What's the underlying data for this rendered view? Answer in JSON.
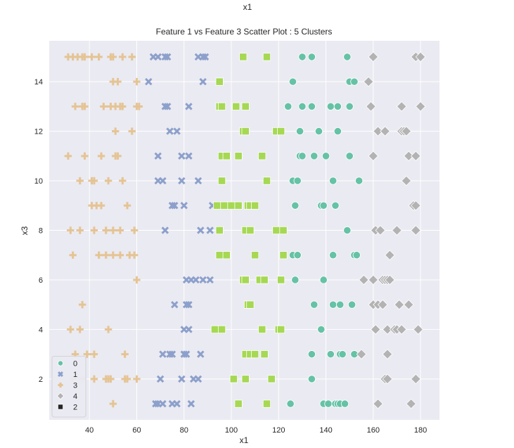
{
  "figure": {
    "suptitle": "x1"
  },
  "chart_data": {
    "type": "scatter",
    "title": "Feature 1 vs Feature 3 Scatter Plot : 5 Clusters",
    "xlabel": "x1",
    "ylabel": "x3",
    "xlim": [
      23,
      188
    ],
    "ylim": [
      0.35,
      15.65
    ],
    "xticks": [
      40,
      60,
      80,
      100,
      120,
      140,
      160,
      180
    ],
    "yticks": [
      2,
      4,
      6,
      8,
      10,
      12,
      14
    ],
    "grid": true,
    "background": "#eaeaf2",
    "legend_position": "lower-left",
    "legend_order": [
      "0",
      "1",
      "3",
      "4",
      "2"
    ],
    "series": [
      {
        "name": "0",
        "marker": "circle",
        "color": "#66c2a5",
        "points": [
          [
            130,
            15
          ],
          [
            134,
            15
          ],
          [
            149,
            15
          ],
          [
            126,
            14
          ],
          [
            150,
            14
          ],
          [
            152,
            14
          ],
          [
            124,
            13
          ],
          [
            130,
            13
          ],
          [
            134,
            13
          ],
          [
            142,
            13
          ],
          [
            145,
            13
          ],
          [
            150,
            13
          ],
          [
            129,
            12
          ],
          [
            137,
            12
          ],
          [
            145,
            12
          ],
          [
            129,
            11
          ],
          [
            130,
            11
          ],
          [
            135,
            11
          ],
          [
            140,
            11
          ],
          [
            150,
            11
          ],
          [
            126,
            10
          ],
          [
            128,
            10
          ],
          [
            143,
            10
          ],
          [
            154,
            10
          ],
          [
            127,
            9
          ],
          [
            138,
            9
          ],
          [
            139,
            9
          ],
          [
            144,
            9
          ],
          [
            149,
            8
          ],
          [
            126,
            7
          ],
          [
            128,
            7
          ],
          [
            143,
            7
          ],
          [
            152,
            7
          ],
          [
            153,
            7
          ],
          [
            127,
            6
          ],
          [
            139,
            6
          ],
          [
            135,
            5
          ],
          [
            143,
            5
          ],
          [
            146,
            5
          ],
          [
            151,
            5
          ],
          [
            138,
            4
          ],
          [
            134,
            3
          ],
          [
            142,
            3
          ],
          [
            146,
            3
          ],
          [
            147,
            3
          ],
          [
            152,
            3
          ],
          [
            134,
            2
          ],
          [
            125,
            1
          ],
          [
            139,
            1
          ],
          [
            141,
            1
          ],
          [
            144,
            1
          ],
          [
            145,
            1
          ],
          [
            146,
            1
          ],
          [
            148,
            1
          ]
        ]
      },
      {
        "name": "1",
        "marker": "x",
        "color": "#8da0cb",
        "points": [
          [
            67,
            15
          ],
          [
            69,
            15
          ],
          [
            72,
            15
          ],
          [
            73,
            15
          ],
          [
            86,
            15
          ],
          [
            88,
            15
          ],
          [
            89,
            15
          ],
          [
            65,
            14
          ],
          [
            88,
            14
          ],
          [
            72,
            13
          ],
          [
            73,
            13
          ],
          [
            82,
            13
          ],
          [
            74,
            12
          ],
          [
            77,
            12
          ],
          [
            69,
            11
          ],
          [
            79,
            11
          ],
          [
            82,
            11
          ],
          [
            69,
            10
          ],
          [
            71,
            10
          ],
          [
            79,
            10
          ],
          [
            86,
            10
          ],
          [
            75,
            9
          ],
          [
            76,
            9
          ],
          [
            80,
            9
          ],
          [
            92,
            9
          ],
          [
            72,
            8
          ],
          [
            87,
            8
          ],
          [
            91,
            8
          ],
          [
            81,
            6
          ],
          [
            83,
            6
          ],
          [
            85,
            6
          ],
          [
            88,
            6
          ],
          [
            91,
            6
          ],
          [
            76,
            5
          ],
          [
            81,
            5
          ],
          [
            82,
            5
          ],
          [
            80,
            4
          ],
          [
            82,
            4
          ],
          [
            71,
            3
          ],
          [
            74,
            3
          ],
          [
            75,
            3
          ],
          [
            80,
            3
          ],
          [
            81,
            3
          ],
          [
            87,
            3
          ],
          [
            70,
            2
          ],
          [
            79,
            2
          ],
          [
            84,
            2
          ],
          [
            86,
            2
          ],
          [
            68,
            1
          ],
          [
            69,
            1
          ],
          [
            71,
            1
          ],
          [
            75,
            1
          ],
          [
            77,
            1
          ],
          [
            83,
            1
          ]
        ]
      },
      {
        "name": "3",
        "marker": "plus",
        "color": "#e5c494",
        "points": [
          [
            31,
            15
          ],
          [
            33,
            15
          ],
          [
            35,
            15
          ],
          [
            37,
            15
          ],
          [
            38,
            15
          ],
          [
            41,
            15
          ],
          [
            44,
            15
          ],
          [
            49,
            15
          ],
          [
            50,
            15
          ],
          [
            54,
            15
          ],
          [
            58,
            15
          ],
          [
            50,
            14
          ],
          [
            52,
            14
          ],
          [
            60,
            14
          ],
          [
            34,
            13
          ],
          [
            37,
            13
          ],
          [
            38,
            13
          ],
          [
            46,
            13
          ],
          [
            49,
            13
          ],
          [
            51,
            13
          ],
          [
            53,
            13
          ],
          [
            54,
            13
          ],
          [
            60,
            13
          ],
          [
            61,
            13
          ],
          [
            51,
            12
          ],
          [
            58,
            12
          ],
          [
            31,
            11
          ],
          [
            38,
            11
          ],
          [
            45,
            11
          ],
          [
            51,
            11
          ],
          [
            52,
            11
          ],
          [
            36,
            10
          ],
          [
            41,
            10
          ],
          [
            42,
            10
          ],
          [
            48,
            10
          ],
          [
            54,
            10
          ],
          [
            41,
            9
          ],
          [
            43,
            9
          ],
          [
            45,
            9
          ],
          [
            56,
            9
          ],
          [
            32,
            8
          ],
          [
            36,
            8
          ],
          [
            42,
            8
          ],
          [
            47,
            8
          ],
          [
            50,
            8
          ],
          [
            53,
            8
          ],
          [
            59,
            8
          ],
          [
            33,
            7
          ],
          [
            44,
            7
          ],
          [
            47,
            7
          ],
          [
            50,
            7
          ],
          [
            53,
            7
          ],
          [
            57,
            7
          ],
          [
            59,
            7
          ],
          [
            60,
            6
          ],
          [
            37,
            5
          ],
          [
            32,
            4
          ],
          [
            36,
            4
          ],
          [
            48,
            4
          ],
          [
            34,
            3
          ],
          [
            39,
            3
          ],
          [
            42,
            3
          ],
          [
            55,
            3
          ],
          [
            33,
            2
          ],
          [
            37,
            2
          ],
          [
            42,
            2
          ],
          [
            47,
            2
          ],
          [
            48,
            2
          ],
          [
            49,
            2
          ],
          [
            55,
            2
          ],
          [
            56,
            2
          ],
          [
            60,
            2
          ],
          [
            50,
            1
          ]
        ]
      },
      {
        "name": "4",
        "marker": "diamond",
        "color": "#b3b3b3",
        "points": [
          [
            160,
            15
          ],
          [
            178,
            15
          ],
          [
            180,
            15
          ],
          [
            158,
            14
          ],
          [
            159,
            13
          ],
          [
            172,
            13
          ],
          [
            180,
            13
          ],
          [
            162,
            12
          ],
          [
            165,
            12
          ],
          [
            172,
            12
          ],
          [
            173,
            12
          ],
          [
            174,
            12
          ],
          [
            160,
            11
          ],
          [
            175,
            11
          ],
          [
            178,
            11
          ],
          [
            174,
            10
          ],
          [
            177,
            9
          ],
          [
            178,
            9
          ],
          [
            161,
            8
          ],
          [
            163,
            8
          ],
          [
            170,
            8
          ],
          [
            178,
            8
          ],
          [
            167,
            7
          ],
          [
            156,
            6
          ],
          [
            160,
            6
          ],
          [
            164,
            6
          ],
          [
            165,
            6
          ],
          [
            166,
            6
          ],
          [
            167,
            6
          ],
          [
            160,
            5
          ],
          [
            162,
            5
          ],
          [
            164,
            5
          ],
          [
            171,
            5
          ],
          [
            175,
            5
          ],
          [
            161,
            4
          ],
          [
            166,
            4
          ],
          [
            169,
            4
          ],
          [
            170,
            4
          ],
          [
            172,
            4
          ],
          [
            179,
            4
          ],
          [
            155,
            3
          ],
          [
            166,
            3
          ],
          [
            165,
            2
          ],
          [
            166,
            2
          ],
          [
            178,
            2
          ],
          [
            162,
            1
          ],
          [
            176,
            1
          ]
        ]
      },
      {
        "name": "2",
        "marker": "square",
        "color": "#a6d854",
        "points": [
          [
            105,
            15
          ],
          [
            115,
            15
          ],
          [
            95,
            14
          ],
          [
            95,
            13
          ],
          [
            96,
            13
          ],
          [
            102,
            13
          ],
          [
            106,
            13
          ],
          [
            105,
            12
          ],
          [
            106,
            12
          ],
          [
            119,
            12
          ],
          [
            121,
            12
          ],
          [
            96,
            11
          ],
          [
            98,
            11
          ],
          [
            103,
            11
          ],
          [
            113,
            11
          ],
          [
            96,
            10
          ],
          [
            115,
            10
          ],
          [
            94,
            9
          ],
          [
            97,
            9
          ],
          [
            100,
            9
          ],
          [
            103,
            9
          ],
          [
            107,
            9
          ],
          [
            108,
            9
          ],
          [
            110,
            9
          ],
          [
            95,
            8
          ],
          [
            106,
            8
          ],
          [
            108,
            8
          ],
          [
            119,
            8
          ],
          [
            122,
            8
          ],
          [
            95,
            7
          ],
          [
            98,
            7
          ],
          [
            110,
            7
          ],
          [
            122,
            7
          ],
          [
            105,
            6
          ],
          [
            106,
            6
          ],
          [
            112,
            6
          ],
          [
            114,
            6
          ],
          [
            121,
            6
          ],
          [
            107,
            5
          ],
          [
            108,
            5
          ],
          [
            93,
            4
          ],
          [
            96,
            4
          ],
          [
            113,
            4
          ],
          [
            120,
            4
          ],
          [
            121,
            4
          ],
          [
            106,
            3
          ],
          [
            108,
            3
          ],
          [
            110,
            3
          ],
          [
            114,
            3
          ],
          [
            101,
            2
          ],
          [
            106,
            2
          ],
          [
            117,
            2
          ],
          [
            103,
            1
          ],
          [
            115,
            1
          ]
        ]
      }
    ]
  }
}
